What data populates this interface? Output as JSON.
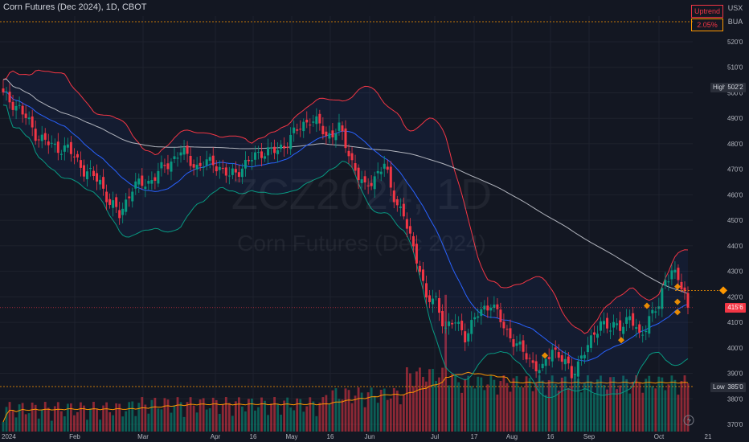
{
  "header": {
    "title": "Corn Futures (Dec 2024), 1D, CBOT"
  },
  "watermark": {
    "symbol": "ZCZ2024, 1D",
    "name": "Corn Futures (Dec 2024)"
  },
  "top_right": {
    "currency": "USX",
    "unit": "BUA"
  },
  "indicator": {
    "label": "Uptrend",
    "value": "2.05%"
  },
  "markers": {
    "high_label": "High",
    "high_value": "502'2",
    "low_label": "Low",
    "low_value": "385'0",
    "last_value": "415'6"
  },
  "colors": {
    "up": "#089981",
    "down": "#f23645",
    "background": "#131722",
    "ma_slow": "#b2b5be",
    "ma_fast": "#2962ff",
    "volume_ma": "#ff9800"
  },
  "icons": {
    "bottom_right": "lightning-icon"
  },
  "chart_data": {
    "type": "candlestick",
    "y_axis_ticks": [
      "520'0",
      "510'0",
      "500'0",
      "490'0",
      "480'0",
      "470'0",
      "460'0",
      "450'0",
      "440'0",
      "430'0",
      "420'0",
      "410'0",
      "400'0",
      "390'0",
      "380'0",
      "370'0"
    ],
    "x_axis_ticks": [
      "2024",
      "Feb",
      "Mar",
      "Apr",
      "16",
      "May",
      "16",
      "Jun",
      "Jul",
      "17",
      "Aug",
      "16",
      "Sep",
      "Oct",
      "21"
    ],
    "ylim": [
      368,
      527
    ],
    "key_closes": [
      {
        "t": 0,
        "v": 499
      },
      {
        "t": 5,
        "v": 494
      },
      {
        "t": 10,
        "v": 484
      },
      {
        "t": 15,
        "v": 479
      },
      {
        "t": 20,
        "v": 478
      },
      {
        "t": 25,
        "v": 470
      },
      {
        "t": 30,
        "v": 465
      },
      {
        "t": 33,
        "v": 457
      },
      {
        "t": 36,
        "v": 452
      },
      {
        "t": 40,
        "v": 463
      },
      {
        "t": 45,
        "v": 465
      },
      {
        "t": 50,
        "v": 471
      },
      {
        "t": 55,
        "v": 477
      },
      {
        "t": 60,
        "v": 471
      },
      {
        "t": 65,
        "v": 473
      },
      {
        "t": 70,
        "v": 467
      },
      {
        "t": 75,
        "v": 472
      },
      {
        "t": 80,
        "v": 477
      },
      {
        "t": 85,
        "v": 477
      },
      {
        "t": 90,
        "v": 484
      },
      {
        "t": 95,
        "v": 490
      },
      {
        "t": 98,
        "v": 487
      },
      {
        "t": 100,
        "v": 483
      },
      {
        "t": 104,
        "v": 486
      },
      {
        "t": 108,
        "v": 473
      },
      {
        "t": 112,
        "v": 462
      },
      {
        "t": 116,
        "v": 469
      },
      {
        "t": 118,
        "v": 472
      },
      {
        "t": 120,
        "v": 462
      },
      {
        "t": 124,
        "v": 452
      },
      {
        "t": 127,
        "v": 438
      },
      {
        "t": 129,
        "v": 432
      },
      {
        "t": 131,
        "v": 419
      },
      {
        "t": 134,
        "v": 418
      },
      {
        "t": 137,
        "v": 408
      },
      {
        "t": 140,
        "v": 410
      },
      {
        "t": 143,
        "v": 405
      },
      {
        "t": 147,
        "v": 413
      },
      {
        "t": 151,
        "v": 418
      },
      {
        "t": 155,
        "v": 408
      },
      {
        "t": 158,
        "v": 403
      },
      {
        "t": 161,
        "v": 398
      },
      {
        "t": 164,
        "v": 394
      },
      {
        "t": 167,
        "v": 391
      },
      {
        "t": 170,
        "v": 400
      },
      {
        "t": 173,
        "v": 396
      },
      {
        "t": 176,
        "v": 389
      },
      {
        "t": 179,
        "v": 397
      },
      {
        "t": 182,
        "v": 402
      },
      {
        "t": 185,
        "v": 411
      },
      {
        "t": 188,
        "v": 407
      },
      {
        "t": 191,
        "v": 409
      },
      {
        "t": 194,
        "v": 412
      },
      {
        "t": 197,
        "v": 404
      },
      {
        "t": 200,
        "v": 412
      },
      {
        "t": 203,
        "v": 416
      },
      {
        "t": 205,
        "v": 427
      },
      {
        "t": 207,
        "v": 431
      },
      {
        "t": 209,
        "v": 426
      },
      {
        "t": 211,
        "v": 421
      },
      {
        "t": 212,
        "v": 415.75
      }
    ]
  }
}
